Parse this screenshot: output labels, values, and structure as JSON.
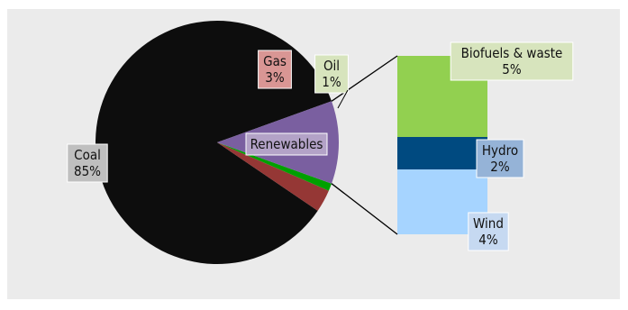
{
  "chart_data": {
    "type": "pie",
    "subtype": "bar-of-pie",
    "title": "",
    "slices": [
      {
        "label": "Coal",
        "pct_label": "85%",
        "value": 85,
        "color": "#0d0d0d",
        "label_bg": "#bfbfbf"
      },
      {
        "label": "Gas",
        "pct_label": "3%",
        "value": 3,
        "color": "#953735",
        "label_bg": "#d99694"
      },
      {
        "label": "Oil",
        "pct_label": "1%",
        "value": 1,
        "color": "#00a000",
        "label_bg": "#d7e4bd"
      },
      {
        "label": "Renewables",
        "pct_label": "",
        "value": 11,
        "color": "#7a5fa0",
        "label_bg": "#b3a2c7"
      }
    ],
    "breakdown": {
      "of": "Renewables",
      "items": [
        {
          "label": "Biofuels & waste",
          "pct_label": "5%",
          "value": 5,
          "color": "#92d050",
          "label_bg": "#d7e4bd"
        },
        {
          "label": "Hydro",
          "pct_label": "2%",
          "value": 2,
          "color": "#004a80",
          "label_bg": "#95b3d7"
        },
        {
          "label": "Wind",
          "pct_label": "4%",
          "value": 4,
          "color": "#a6d4ff",
          "label_bg": "#c6d9f1"
        }
      ]
    },
    "background_color": "#ebebeb"
  }
}
